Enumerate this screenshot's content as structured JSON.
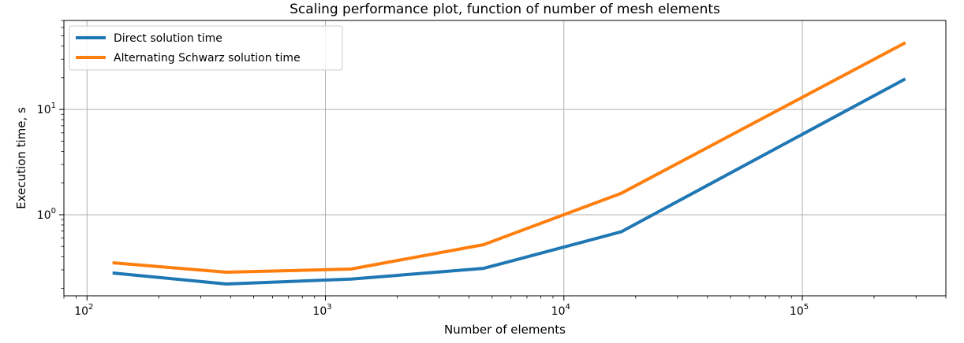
{
  "chart_data": {
    "type": "line",
    "title": "Scaling performance plot, function of number of mesh elements",
    "xlabel": "Number of elements",
    "ylabel": "Execution time, s",
    "xscale": "log",
    "yscale": "log",
    "xlim": [
      80,
      400000
    ],
    "ylim": [
      0.17,
      70
    ],
    "grid": true,
    "legend_position": "top-left",
    "x_ticks": [
      {
        "base": "10",
        "exp": "2",
        "value": 100
      },
      {
        "base": "10",
        "exp": "3",
        "value": 1000
      },
      {
        "base": "10",
        "exp": "4",
        "value": 10000
      },
      {
        "base": "10",
        "exp": "5",
        "value": 100000
      }
    ],
    "y_ticks": [
      {
        "base": "10",
        "exp": "0",
        "value": 1
      },
      {
        "base": "10",
        "exp": "1",
        "value": 10
      }
    ],
    "x": [
      128,
      384,
      1280,
      4608,
      17408,
      270336
    ],
    "series": [
      {
        "name": "Direct solution time",
        "color": "#1f77b4",
        "values": [
          0.28,
          0.22,
          0.245,
          0.31,
          0.69,
          19.5
        ]
      },
      {
        "name": "Alternating Schwarz solution time",
        "color": "#ff7f0e",
        "values": [
          0.35,
          0.285,
          0.305,
          0.52,
          1.6,
          43.0
        ]
      }
    ]
  }
}
